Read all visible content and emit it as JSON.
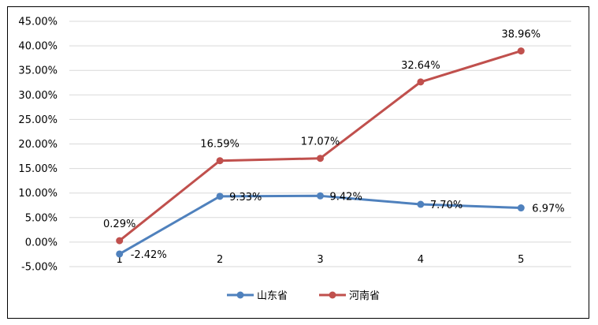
{
  "chart_data": {
    "type": "line",
    "title": "",
    "xlabel": "",
    "ylabel": "",
    "x": [
      "1",
      "2",
      "3",
      "4",
      "5"
    ],
    "ylim": [
      -5,
      45
    ],
    "yticks": [
      -5,
      0,
      5,
      10,
      15,
      20,
      25,
      30,
      35,
      40,
      45
    ],
    "ytick_labels": [
      "-5.00%",
      "0.00%",
      "5.00%",
      "10.00%",
      "15.00%",
      "20.00%",
      "25.00%",
      "30.00%",
      "35.00%",
      "40.00%",
      "45.00%"
    ],
    "grid": true,
    "legend": "bottom",
    "series": [
      {
        "name": "山东省",
        "color": "#4f81bd",
        "values": [
          -2.42,
          9.33,
          9.42,
          7.7,
          6.97
        ],
        "labels": [
          "-2.42%",
          "9.33%",
          "9.42%",
          "7.70%",
          "6.97%"
        ]
      },
      {
        "name": "河南省",
        "color": "#c0504d",
        "values": [
          0.29,
          16.59,
          17.07,
          32.64,
          38.96
        ],
        "labels": [
          "0.29%",
          "16.59%",
          "17.07%",
          "32.64%",
          "38.96%"
        ]
      }
    ]
  }
}
